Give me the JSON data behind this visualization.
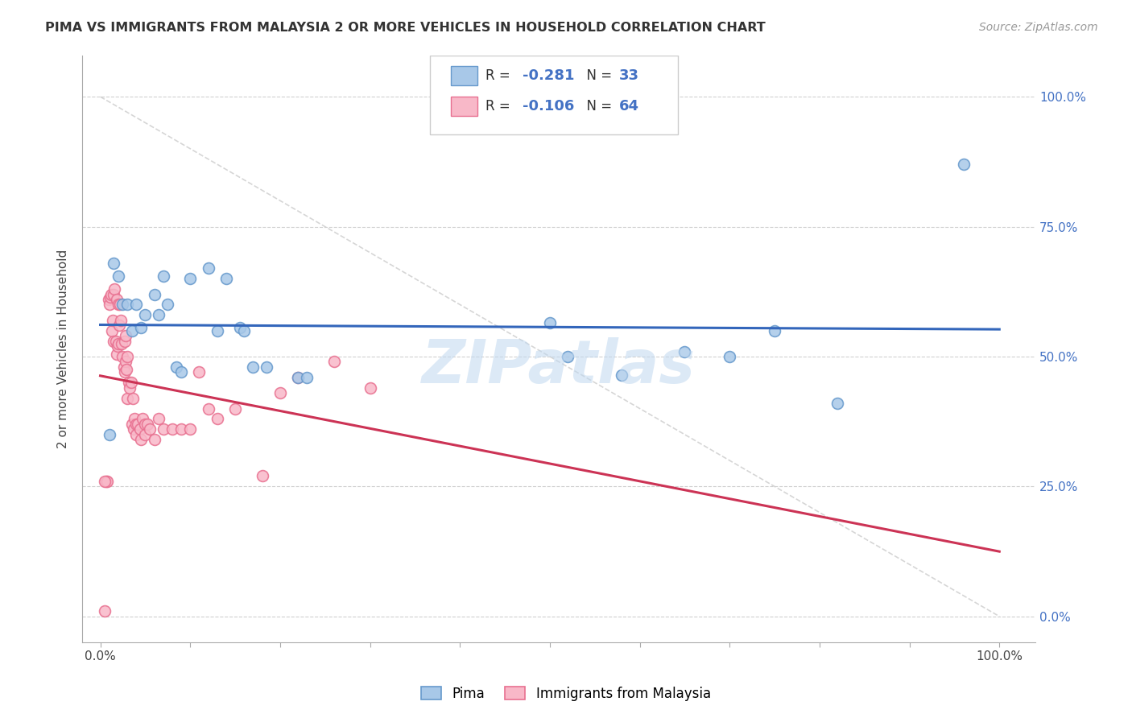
{
  "title": "PIMA VS IMMIGRANTS FROM MALAYSIA 2 OR MORE VEHICLES IN HOUSEHOLD CORRELATION CHART",
  "source": "Source: ZipAtlas.com",
  "ylabel": "2 or more Vehicles in Household",
  "watermark": "ZIPatlas",
  "legend_pima": {
    "R": -0.281,
    "N": 33
  },
  "legend_immigrants": {
    "R": -0.106,
    "N": 64
  },
  "pima_color": "#a8c8e8",
  "pima_edge_color": "#6699cc",
  "immigrants_color": "#f8b8c8",
  "immigrants_edge_color": "#e87090",
  "trend_pima_color": "#3366bb",
  "trend_immigrants_color": "#cc3355",
  "diagonal_color": "#cccccc",
  "pima_scatter": {
    "x": [
      0.01,
      0.015,
      0.02,
      0.025,
      0.03,
      0.035,
      0.04,
      0.045,
      0.05,
      0.06,
      0.065,
      0.07,
      0.075,
      0.085,
      0.09,
      0.1,
      0.12,
      0.13,
      0.14,
      0.155,
      0.16,
      0.17,
      0.185,
      0.22,
      0.23,
      0.5,
      0.52,
      0.58,
      0.65,
      0.7,
      0.75,
      0.82,
      0.96
    ],
    "y": [
      0.35,
      0.68,
      0.655,
      0.6,
      0.6,
      0.55,
      0.6,
      0.555,
      0.58,
      0.62,
      0.58,
      0.655,
      0.6,
      0.48,
      0.47,
      0.65,
      0.67,
      0.55,
      0.65,
      0.555,
      0.55,
      0.48,
      0.48,
      0.46,
      0.46,
      0.565,
      0.5,
      0.465,
      0.51,
      0.5,
      0.55,
      0.41,
      0.87
    ]
  },
  "immigrants_scatter": {
    "x": [
      0.005,
      0.007,
      0.008,
      0.009,
      0.01,
      0.011,
      0.012,
      0.013,
      0.014,
      0.015,
      0.015,
      0.016,
      0.017,
      0.018,
      0.018,
      0.019,
      0.02,
      0.02,
      0.021,
      0.022,
      0.023,
      0.024,
      0.025,
      0.026,
      0.027,
      0.027,
      0.028,
      0.028,
      0.029,
      0.03,
      0.03,
      0.032,
      0.033,
      0.034,
      0.035,
      0.036,
      0.037,
      0.038,
      0.04,
      0.04,
      0.042,
      0.044,
      0.045,
      0.047,
      0.05,
      0.05,
      0.052,
      0.055,
      0.06,
      0.065,
      0.07,
      0.08,
      0.09,
      0.1,
      0.11,
      0.12,
      0.13,
      0.15,
      0.18,
      0.2,
      0.22,
      0.26,
      0.3,
      0.005
    ],
    "y": [
      0.01,
      0.26,
      0.26,
      0.61,
      0.6,
      0.615,
      0.62,
      0.55,
      0.57,
      0.53,
      0.62,
      0.63,
      0.53,
      0.61,
      0.505,
      0.52,
      0.6,
      0.525,
      0.56,
      0.6,
      0.57,
      0.525,
      0.5,
      0.48,
      0.53,
      0.47,
      0.54,
      0.49,
      0.475,
      0.5,
      0.42,
      0.45,
      0.44,
      0.45,
      0.37,
      0.42,
      0.36,
      0.38,
      0.37,
      0.35,
      0.37,
      0.36,
      0.34,
      0.38,
      0.37,
      0.35,
      0.37,
      0.36,
      0.34,
      0.38,
      0.36,
      0.36,
      0.36,
      0.36,
      0.47,
      0.4,
      0.38,
      0.4,
      0.27,
      0.43,
      0.46,
      0.49,
      0.44,
      0.26
    ]
  },
  "xlim": [
    -0.02,
    1.04
  ],
  "ylim": [
    -0.05,
    1.08
  ],
  "xticks": [
    0.0,
    0.1,
    0.2,
    0.3,
    0.4,
    0.5,
    0.6,
    0.7,
    0.8,
    0.9,
    1.0
  ],
  "yticks": [
    0.0,
    0.25,
    0.5,
    0.75,
    1.0
  ],
  "xtick_labels": [
    "0.0%",
    "",
    "",
    "",
    "",
    "",
    "",
    "",
    "",
    "",
    "100.0%"
  ],
  "ytick_labels_right": [
    "0.0%",
    "25.0%",
    "50.0%",
    "75.0%",
    "100.0%"
  ],
  "marker_size": 100,
  "bottom_legend_labels": [
    "Pima",
    "Immigrants from Malaysia"
  ]
}
